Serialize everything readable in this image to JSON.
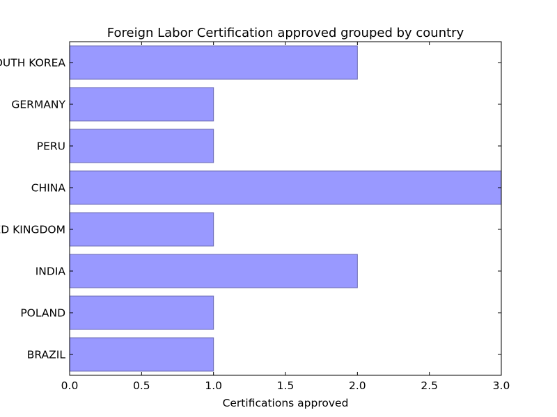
{
  "chart_data": {
    "type": "bar",
    "orientation": "horizontal",
    "title": "Foreign Labor Certification approved grouped by country",
    "xlabel": "Certifications approved",
    "ylabel": "",
    "categories": [
      "SOUTH KOREA",
      "GERMANY",
      "PERU",
      "CHINA",
      "UNITED KINGDOM",
      "INDIA",
      "POLAND",
      "BRAZIL"
    ],
    "values": [
      2,
      1,
      1,
      3,
      1,
      2,
      1,
      1
    ],
    "xlim": [
      0,
      3
    ],
    "xticks": [
      "0.0",
      "0.5",
      "1.0",
      "1.5",
      "2.0",
      "2.5",
      "3.0"
    ],
    "grid": false,
    "legend": "none",
    "bar_color": "#9999ff",
    "bar_edge_color": "#6b6bb3"
  }
}
